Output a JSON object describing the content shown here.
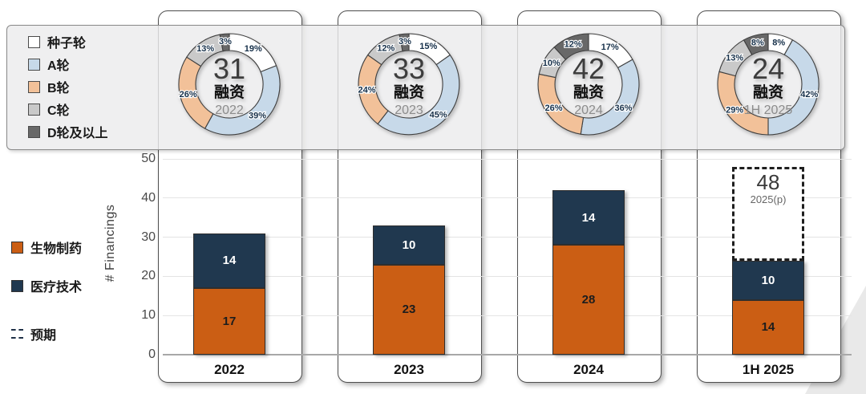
{
  "colors": {
    "seed": "#ffffff",
    "series_a": "#c7d9e9",
    "series_b": "#f2c199",
    "series_c": "#c9c9c9",
    "series_d": "#686868",
    "biopharma": "#cb5e14",
    "medtech": "#20384f",
    "pct_label": "#16304a",
    "segment_outline": "#3f3f3f"
  },
  "round_legend": {
    "items": [
      {
        "label": "种子轮",
        "color": "#ffffff"
      },
      {
        "label": "A轮",
        "color": "#c7d9e9"
      },
      {
        "label": "B轮",
        "color": "#f2c199"
      },
      {
        "label": "C轮",
        "color": "#c9c9c9"
      },
      {
        "label": "D轮及以上",
        "color": "#686868"
      }
    ]
  },
  "sector_legend": {
    "items": [
      {
        "label": "生物制药",
        "swatch": "square",
        "color": "#cb5e14"
      },
      {
        "label": "医疗技术",
        "swatch": "square",
        "color": "#20384f"
      },
      {
        "label": "预期",
        "swatch": "dashed",
        "color": "#1f3047"
      }
    ]
  },
  "chart_data": {
    "donuts": {
      "type": "pie",
      "legend": [
        "种子轮",
        "A轮",
        "B轮",
        "C轮",
        "D轮及以上"
      ],
      "colors": [
        "#ffffff",
        "#c7d9e9",
        "#f2c199",
        "#c9c9c9",
        "#686868"
      ],
      "charts": [
        {
          "center_value": "31",
          "center_label": "融资",
          "period": "2022",
          "percents": [
            19,
            39,
            26,
            13,
            3
          ],
          "pct_labels": [
            "19%",
            "39%",
            "26%",
            "13%",
            "3%"
          ]
        },
        {
          "center_value": "33",
          "center_label": "融资",
          "period": "2023",
          "percents": [
            15,
            45,
            24,
            12,
            3
          ],
          "pct_labels": [
            "15%",
            "45%",
            "24%",
            "12%",
            "3%"
          ]
        },
        {
          "center_value": "42",
          "center_label": "融资",
          "period": "2024",
          "percents": [
            17,
            36,
            26,
            10,
            12
          ],
          "pct_labels": [
            "17%",
            "36%",
            "26%",
            "10%",
            "12%"
          ]
        },
        {
          "center_value": "24",
          "center_label": "融资",
          "period": "1H 2025",
          "percents": [
            8,
            42,
            29,
            13,
            8
          ],
          "pct_labels": [
            "8%",
            "42%",
            "29%",
            "13%",
            "8%"
          ]
        }
      ]
    },
    "bars": {
      "type": "bar",
      "stacked": true,
      "categories": [
        "2022",
        "2023",
        "2024",
        "1H 2025"
      ],
      "series": [
        {
          "name": "生物制药",
          "color": "#cb5e14",
          "label_color": "#1d1d1d",
          "values": [
            17,
            23,
            28,
            14
          ]
        },
        {
          "name": "医疗技术",
          "color": "#20384f",
          "label_color": "#ffffff",
          "values": [
            14,
            10,
            14,
            10
          ]
        }
      ],
      "totals": [
        31,
        33,
        42,
        24
      ],
      "ylabel": "# Financings",
      "ylim": [
        0,
        50
      ],
      "yticks": [
        0,
        10,
        20,
        30,
        40,
        50
      ],
      "grid": true,
      "projection": {
        "category": "1H 2025",
        "total": 48,
        "label": "48",
        "sublabel": "2025(p)"
      }
    }
  }
}
